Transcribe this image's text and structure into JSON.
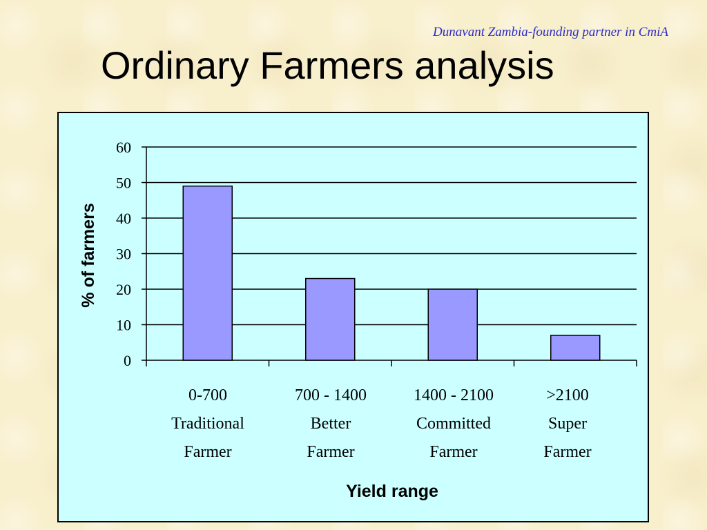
{
  "slide": {
    "subtitle": "Dunavant Zambia-founding partner in CmiA",
    "title": "Ordinary Farmers analysis"
  },
  "chart_data": {
    "type": "bar",
    "categories": [
      [
        "0-700",
        "Traditional",
        "Farmer"
      ],
      [
        "700 - 1400",
        "Better",
        "Farmer"
      ],
      [
        "1400 - 2100",
        "Committed",
        "Farmer"
      ],
      [
        ">2100",
        "Super",
        "Farmer"
      ]
    ],
    "values": [
      49,
      23,
      20,
      7
    ],
    "xlabel": "Yield range",
    "ylabel": "% of farmers",
    "ylim": [
      0,
      60
    ],
    "yticks": [
      "0",
      "10",
      "20",
      "30",
      "40",
      "50",
      "60"
    ],
    "grid": true,
    "bar_color": "#9999ff",
    "background_color": "#ccffff"
  }
}
